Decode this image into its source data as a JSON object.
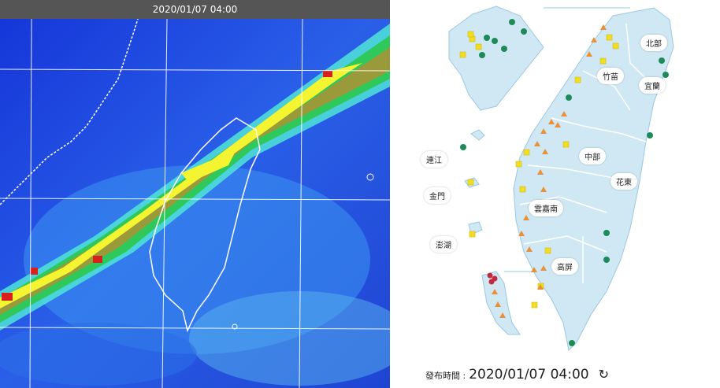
{
  "satellite": {
    "timestamp": "2020/01/07 04:00"
  },
  "aqi_map": {
    "regions": [
      "北部",
      "竹苗",
      "宜蘭",
      "中部",
      "花東",
      "雲嘉南",
      "高屏",
      "連江",
      "金門",
      "澎湖"
    ],
    "publish_label": "發布時間 :",
    "publish_time": "2020/01/07 04:00",
    "marker_colors": {
      "good": "#1e8a5a",
      "moderate": "#f2de1e",
      "sensitive": "#e8913a",
      "unhealthy": "#c8283c"
    }
  }
}
